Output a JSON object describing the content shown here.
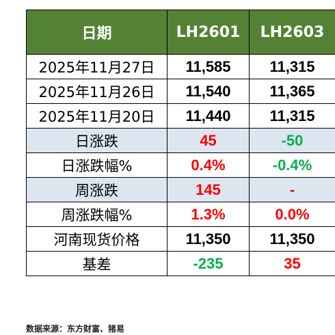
{
  "table": {
    "headers": [
      "日期",
      "LH2601",
      "LH2603"
    ],
    "rows": [
      {
        "label": "2025年11月27日",
        "lh2601": "11,585",
        "lh2603": "11,315",
        "c1": "#000000",
        "c2": "#000000"
      },
      {
        "label": "2025年11月26日",
        "lh2601": "11,540",
        "lh2603": "11,365",
        "c1": "#000000",
        "c2": "#000000"
      },
      {
        "label": "2025年11月20日",
        "lh2601": "11,440",
        "lh2603": "11,315",
        "c1": "#000000",
        "c2": "#000000"
      },
      {
        "label": "日涨跌",
        "lh2601": "45",
        "lh2603": "-50",
        "c1": "#ff0000",
        "c2": "#00b050"
      },
      {
        "label": "日涨跌幅%",
        "lh2601": "0.4%",
        "lh2603": "-0.4%",
        "c1": "#ff0000",
        "c2": "#00b050"
      },
      {
        "label": "周涨跌",
        "lh2601": "145",
        "lh2603": "-",
        "c1": "#ff0000",
        "c2": "#ff0000"
      },
      {
        "label": "周涨跌幅%",
        "lh2601": "1.3%",
        "lh2603": "0.0%",
        "c1": "#ff0000",
        "c2": "#ff0000"
      },
      {
        "label": "河南现货价格",
        "lh2601": "11,350",
        "lh2603": "11,350",
        "c1": "#000000",
        "c2": "#000000"
      },
      {
        "label": "基差",
        "lh2601": "-235",
        "lh2603": "35",
        "c1": "#00b050",
        "c2": "#ff0000"
      }
    ]
  },
  "source": "数据来源：东方财富、猪易",
  "colors": {
    "header_bg": "#548235",
    "shade_bg": "#dce6f1",
    "up": "#ff0000",
    "down": "#00b050"
  }
}
